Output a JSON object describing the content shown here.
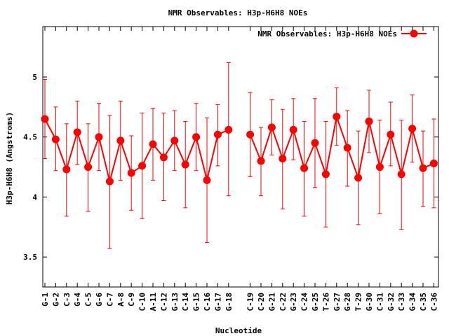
{
  "chart_data": {
    "type": "line",
    "title": "NMR Observables: H3p-H6H8 NOEs",
    "xlabel": "Nucleotide",
    "ylabel": "H3p-H6H8 (Angstroms)",
    "ylim": [
      3.25,
      5.42
    ],
    "yticks": [
      3.5,
      4,
      4.5,
      5
    ],
    "ytick_labels": [
      "3.5",
      "4",
      "4.5",
      "5"
    ],
    "legend_position": "top-right",
    "color": "#ff0000",
    "series": [
      {
        "name": "NMR Observables: H3p-H6H8 NOEs",
        "points": [
          {
            "label": "G-1",
            "x": 1,
            "y": 4.65,
            "lo": 4.32,
            "hi": 4.98
          },
          {
            "label": "G-2",
            "x": 2,
            "y": 4.48,
            "lo": 4.22,
            "hi": 4.75
          },
          {
            "label": "C-3",
            "x": 3,
            "y": 4.23,
            "lo": 3.84,
            "hi": 4.61
          },
          {
            "label": "G-4",
            "x": 4,
            "y": 4.54,
            "lo": 4.27,
            "hi": 4.8
          },
          {
            "label": "C-5",
            "x": 5,
            "y": 4.25,
            "lo": 3.88,
            "hi": 4.61
          },
          {
            "label": "G-6",
            "x": 6,
            "y": 4.5,
            "lo": 4.22,
            "hi": 4.78
          },
          {
            "label": "C-7",
            "x": 7,
            "y": 4.13,
            "lo": 3.57,
            "hi": 4.68
          },
          {
            "label": "A-8",
            "x": 8,
            "y": 4.47,
            "lo": 4.14,
            "hi": 4.8
          },
          {
            "label": "C-9",
            "x": 9,
            "y": 4.2,
            "lo": 3.89,
            "hi": 4.51
          },
          {
            "label": "C-10",
            "x": 10,
            "y": 4.26,
            "lo": 3.82,
            "hi": 4.7
          },
          {
            "label": "A-11",
            "x": 11,
            "y": 4.44,
            "lo": 4.14,
            "hi": 4.74
          },
          {
            "label": "C-12",
            "x": 12,
            "y": 4.33,
            "lo": 3.97,
            "hi": 4.7
          },
          {
            "label": "G-13",
            "x": 13,
            "y": 4.47,
            "lo": 4.22,
            "hi": 4.72
          },
          {
            "label": "C-14",
            "x": 14,
            "y": 4.27,
            "lo": 3.91,
            "hi": 4.63
          },
          {
            "label": "G-15",
            "x": 15,
            "y": 4.5,
            "lo": 4.22,
            "hi": 4.78
          },
          {
            "label": "C-16",
            "x": 16,
            "y": 4.14,
            "lo": 3.62,
            "hi": 4.66
          },
          {
            "label": "G-17",
            "x": 17,
            "y": 4.52,
            "lo": 4.26,
            "hi": 4.77
          },
          {
            "label": "G-18",
            "x": 18,
            "y": 4.56,
            "lo": 4.01,
            "hi": 5.12
          },
          {
            "label": "C-19",
            "x": 20,
            "y": 4.52,
            "lo": 4.17,
            "hi": 4.87
          },
          {
            "label": "C-20",
            "x": 21,
            "y": 4.3,
            "lo": 4.01,
            "hi": 4.58
          },
          {
            "label": "G-21",
            "x": 22,
            "y": 4.58,
            "lo": 4.35,
            "hi": 4.81
          },
          {
            "label": "C-22",
            "x": 23,
            "y": 4.32,
            "lo": 3.9,
            "hi": 4.73
          },
          {
            "label": "G-23",
            "x": 24,
            "y": 4.56,
            "lo": 4.31,
            "hi": 4.82
          },
          {
            "label": "C-24",
            "x": 25,
            "y": 4.24,
            "lo": 3.84,
            "hi": 4.63
          },
          {
            "label": "G-25",
            "x": 26,
            "y": 4.45,
            "lo": 4.08,
            "hi": 4.82
          },
          {
            "label": "T-26",
            "x": 27,
            "y": 4.19,
            "lo": 3.75,
            "hi": 4.63
          },
          {
            "label": "G-27",
            "x": 28,
            "y": 4.67,
            "lo": 4.43,
            "hi": 4.91
          },
          {
            "label": "G-28",
            "x": 29,
            "y": 4.41,
            "lo": 4.09,
            "hi": 4.72
          },
          {
            "label": "T-29",
            "x": 30,
            "y": 4.16,
            "lo": 3.77,
            "hi": 4.55
          },
          {
            "label": "G-30",
            "x": 31,
            "y": 4.63,
            "lo": 4.37,
            "hi": 4.89
          },
          {
            "label": "C-31",
            "x": 32,
            "y": 4.25,
            "lo": 3.86,
            "hi": 4.64
          },
          {
            "label": "G-32",
            "x": 33,
            "y": 4.52,
            "lo": 4.26,
            "hi": 4.79
          },
          {
            "label": "C-33",
            "x": 34,
            "y": 4.19,
            "lo": 3.73,
            "hi": 4.64
          },
          {
            "label": "G-34",
            "x": 35,
            "y": 4.57,
            "lo": 4.29,
            "hi": 4.85
          },
          {
            "label": "C-35",
            "x": 36,
            "y": 4.24,
            "lo": 3.92,
            "hi": 4.55
          },
          {
            "label": "C-36",
            "x": 37,
            "y": 4.28,
            "lo": 3.91,
            "hi": 4.65
          }
        ]
      }
    ],
    "xlim": [
      1,
      37
    ]
  }
}
